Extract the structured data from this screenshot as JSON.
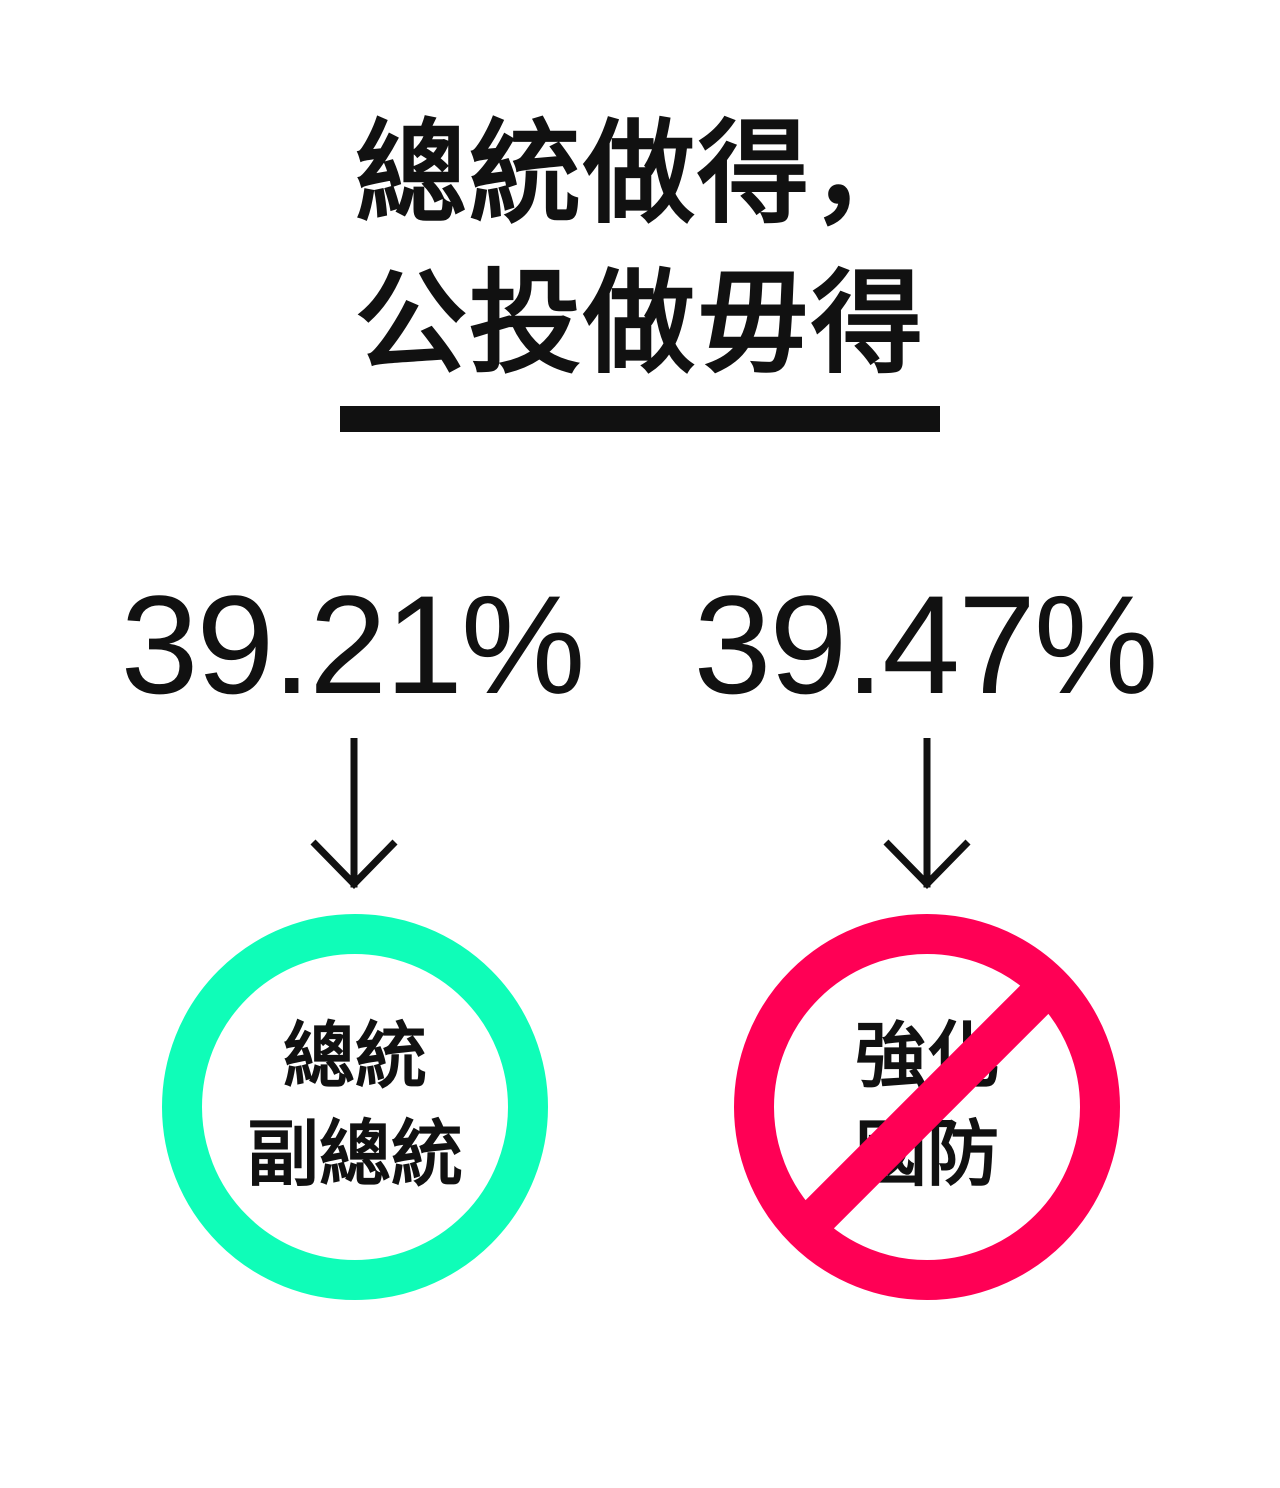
{
  "title": {
    "line1": "總統做得，",
    "line2": "公投做毋得"
  },
  "left": {
    "percent": "39.21%",
    "circle_line1": "總統",
    "circle_line2": "副總統",
    "ring_color": "#0FFDB8"
  },
  "right": {
    "percent": "39.47%",
    "circle_line1": "強化",
    "circle_line2": "國防",
    "ring_color": "#FF0055"
  },
  "colors": {
    "text": "#111111",
    "rule": "#111111",
    "background": "#FFFFFF"
  },
  "icons": {
    "arrow": "down-arrow-icon",
    "ban": "prohibition-icon"
  }
}
